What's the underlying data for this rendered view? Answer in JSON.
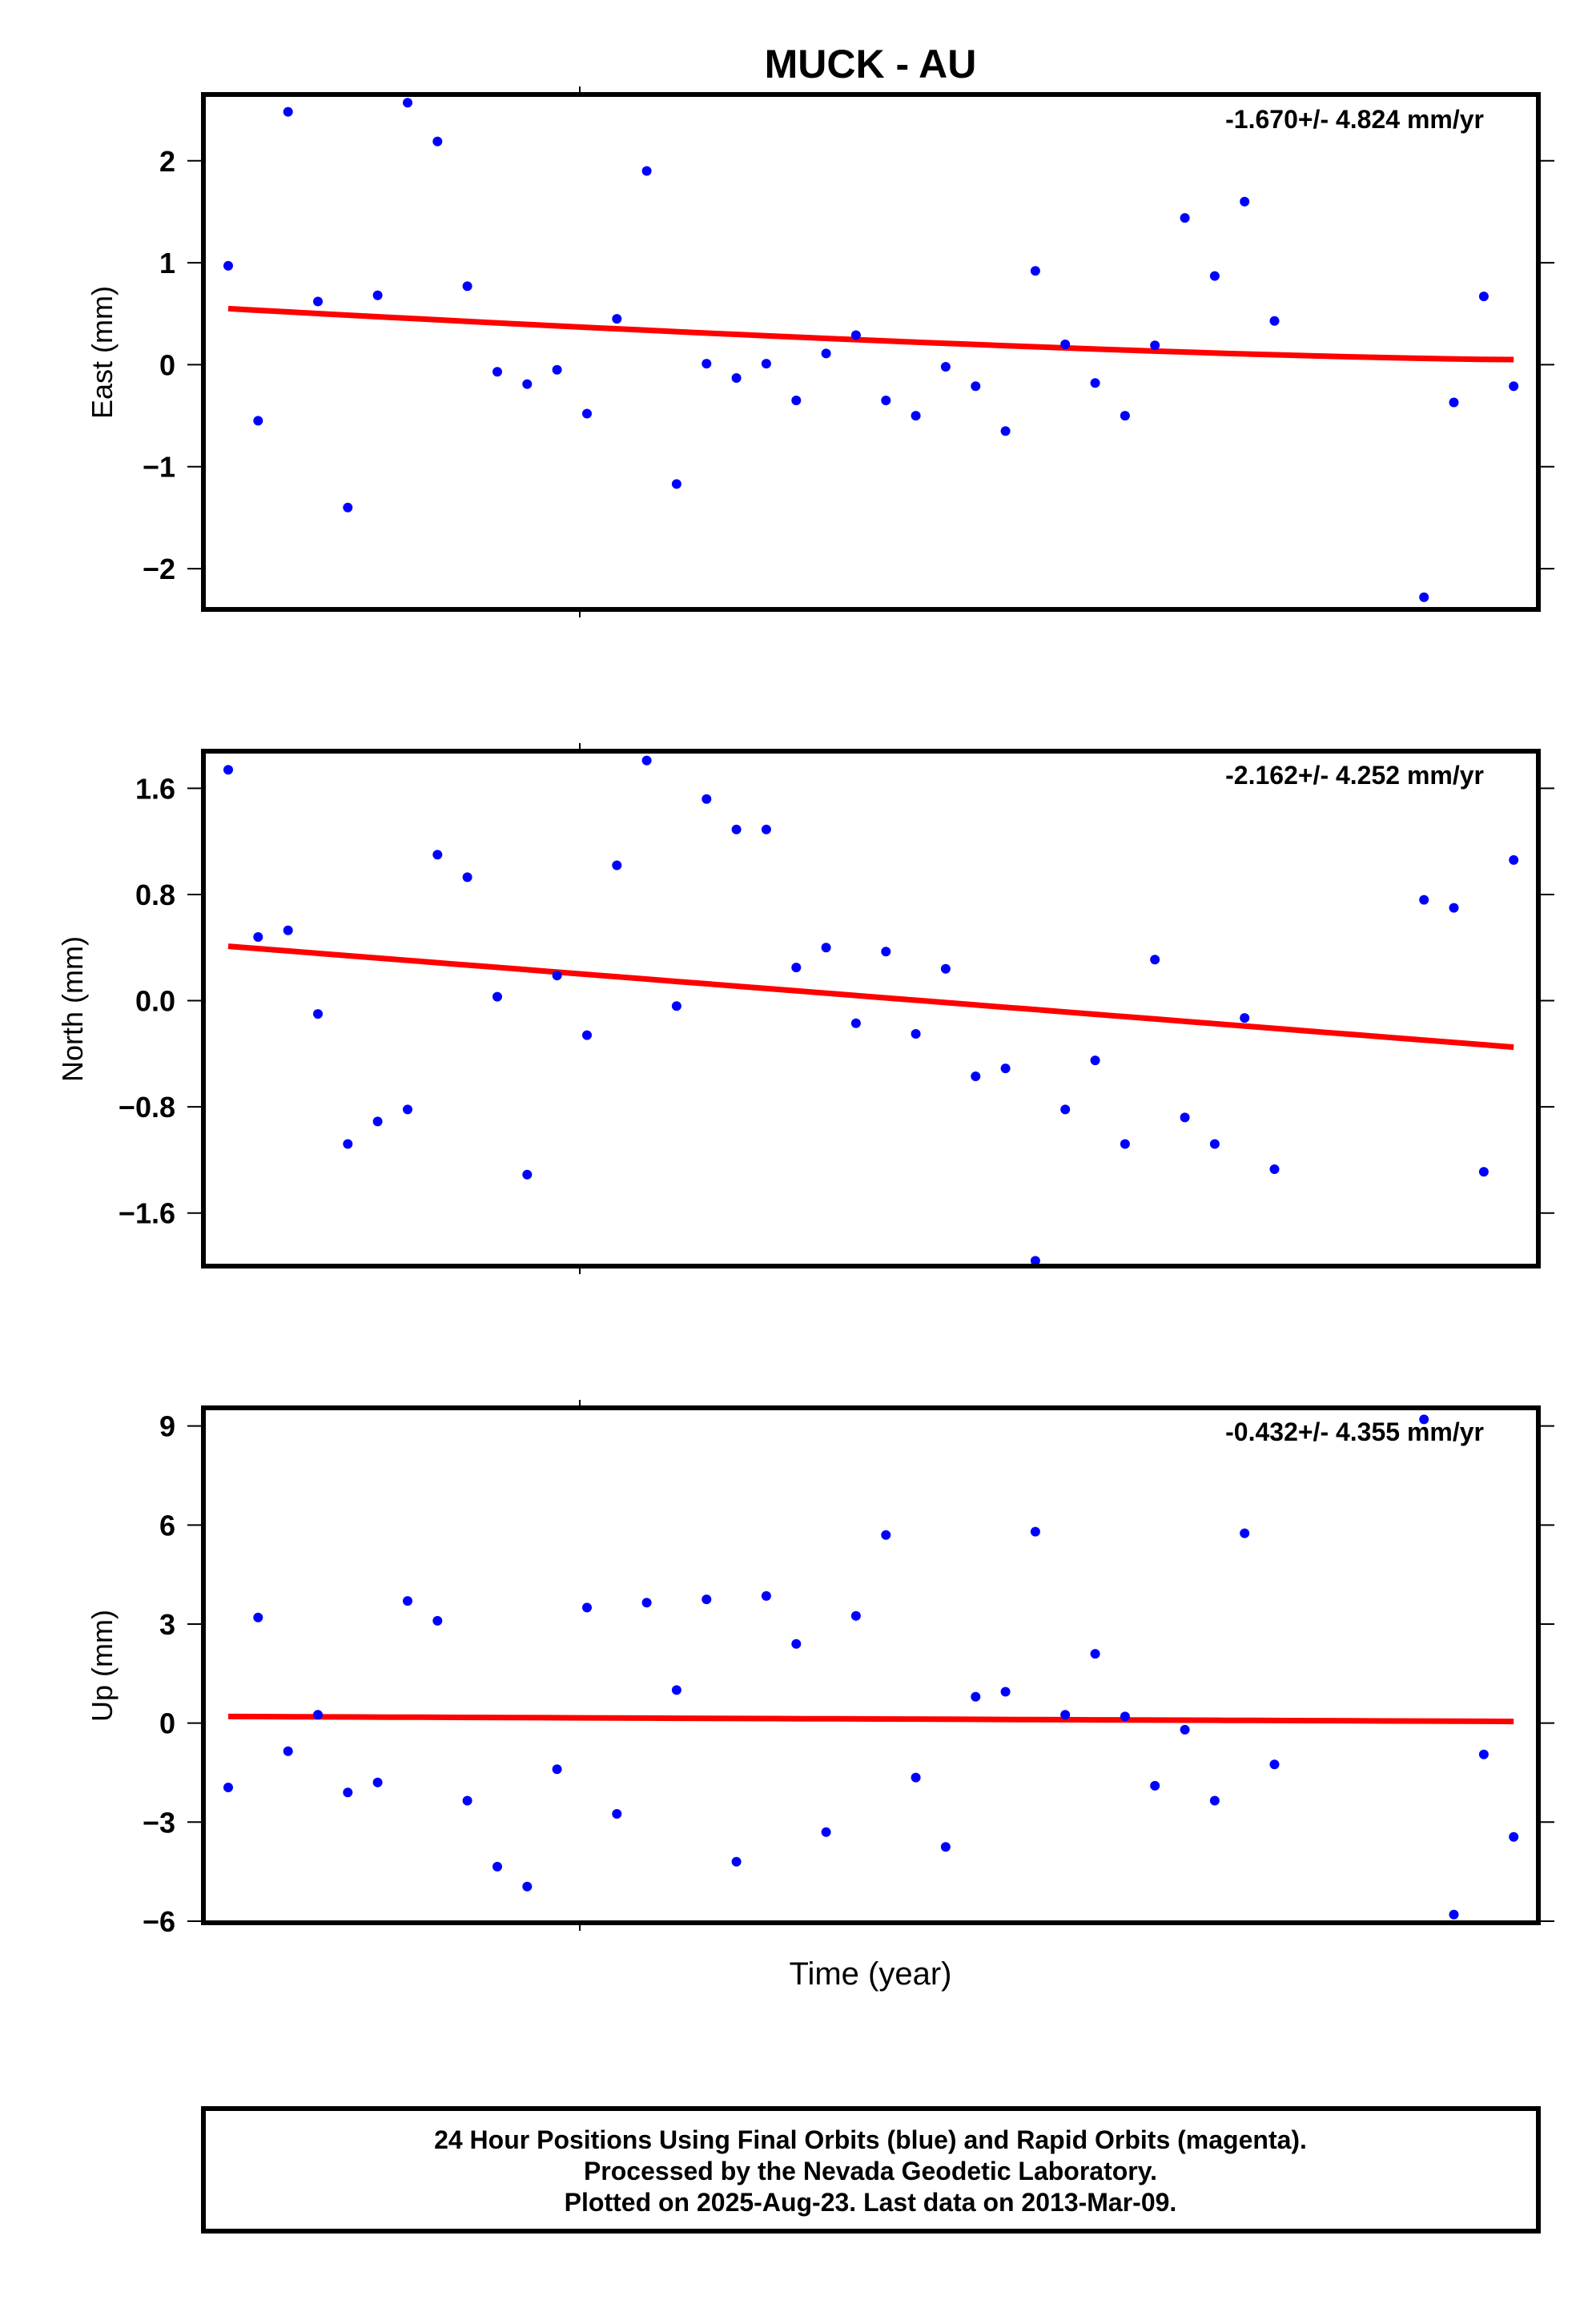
{
  "title": "MUCK - AU",
  "xlabel": "Time (year)",
  "footer": {
    "line1": "24 Hour Positions Using Final Orbits (blue) and Rapid Orbits (magenta).",
    "line2": "Processed by the Nevada Geodetic Laboratory.",
    "line3": "Plotted on 2025-Aug-23. Last data on 2013-Mar-09."
  },
  "colors": {
    "points": "#0000ff",
    "trend": "#ff0000",
    "frame": "#000000"
  },
  "chart_data": [
    {
      "type": "scatter",
      "panel": "east",
      "ylabel": "East (mm)",
      "rate": "-1.670+/- 4.824 mm/yr",
      "ylim": [
        -2.4,
        2.65
      ],
      "yticks": [
        2,
        1,
        0,
        -1,
        -2
      ],
      "ytick_labels": [
        "2",
        "1",
        "0",
        "−1",
        "−2"
      ],
      "points": [
        0.97,
        -0.55,
        2.48,
        0.62,
        -1.4,
        0.68,
        2.57,
        2.19,
        0.77,
        -0.07,
        -0.19,
        -0.05,
        -0.48,
        0.45,
        1.9,
        -1.17,
        0.01,
        -0.13,
        0.01,
        -0.35,
        0.11,
        0.29,
        -0.35,
        -0.5,
        -0.02,
        -0.21,
        -0.65,
        0.92,
        0.2,
        -0.18,
        -0.5,
        0.19,
        1.44,
        0.87,
        1.6,
        0.43,
        null,
        null,
        null,
        null,
        -2.28,
        -0.37,
        0.67,
        -0.21
      ],
      "trend": {
        "start": 0.55,
        "end": 0.05,
        "curvature": 0.04
      }
    },
    {
      "type": "scatter",
      "panel": "north",
      "ylabel": "North (mm)",
      "rate": "-2.162+/- 4.252 mm/yr",
      "ylim": [
        -2.0,
        1.88
      ],
      "yticks": [
        1.6,
        0.8,
        0.0,
        -0.8,
        -1.6
      ],
      "ytick_labels": [
        "1.6",
        "0.8",
        "0.0",
        "−0.8",
        "−1.6"
      ],
      "points": [
        1.74,
        0.48,
        0.53,
        -0.1,
        -1.08,
        -0.91,
        -0.82,
        1.1,
        0.93,
        0.03,
        -1.31,
        0.19,
        -0.26,
        1.02,
        1.81,
        -0.04,
        1.52,
        1.29,
        1.29,
        0.25,
        0.4,
        -0.17,
        0.37,
        -0.25,
        0.24,
        -0.57,
        -0.51,
        -1.96,
        -0.82,
        -0.45,
        -1.08,
        0.31,
        -0.88,
        -1.08,
        -0.13,
        -1.27,
        null,
        null,
        null,
        null,
        0.76,
        0.7,
        -1.29,
        1.06
      ],
      "trend": {
        "start": 0.41,
        "end": -0.35,
        "curvature": 0.0
      }
    },
    {
      "type": "scatter",
      "panel": "up",
      "ylabel": "Up (mm)",
      "rate": "-0.432+/- 4.355 mm/yr",
      "ylim": [
        -6.05,
        9.55
      ],
      "yticks": [
        9,
        6,
        3,
        0,
        -3,
        -6
      ],
      "ytick_labels": [
        "9",
        "6",
        "3",
        "0",
        "−3",
        "−6"
      ],
      "points": [
        -1.95,
        3.2,
        -0.85,
        0.25,
        -2.1,
        -1.8,
        3.7,
        3.1,
        -2.35,
        -4.35,
        -4.95,
        -1.4,
        3.5,
        -2.75,
        3.65,
        1.0,
        3.75,
        -4.2,
        3.85,
        2.4,
        -3.3,
        3.25,
        5.7,
        -1.65,
        -3.75,
        0.8,
        0.95,
        5.8,
        0.25,
        2.1,
        0.2,
        -1.9,
        -0.2,
        -2.35,
        5.75,
        -1.25,
        null,
        null,
        null,
        null,
        9.2,
        -5.8,
        -0.95,
        -3.45
      ],
      "trend": {
        "start": 0.2,
        "end": 0.05,
        "curvature": 0.0
      }
    }
  ]
}
